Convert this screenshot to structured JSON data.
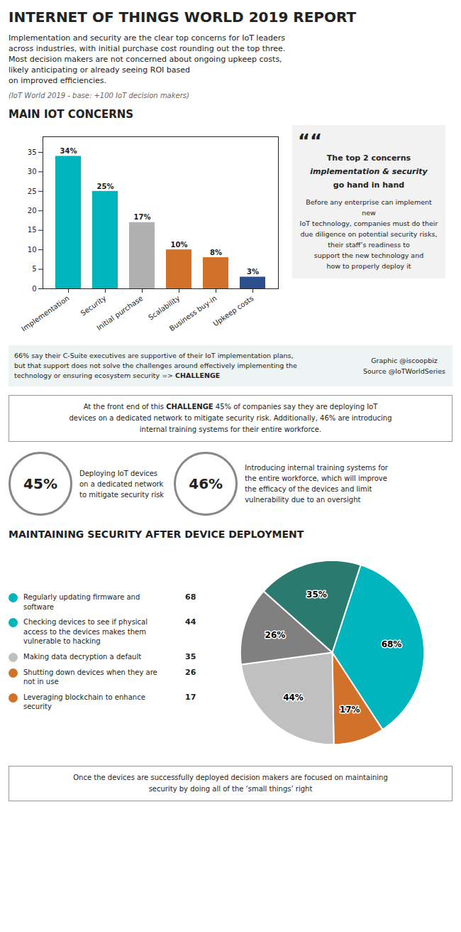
{
  "title": "INTERNET OF THINGS WORLD 2019 REPORT",
  "subtitle": [
    "Implementation and security are the clear top concerns for IoT leaders",
    "across industries, with initial purchase cost rounding out the top three.",
    "Most decision makers are not concerned about ongoing upkeep costs,",
    "likely anticipating or already seeing ROI based",
    "on improved efficiencies."
  ],
  "caption": "(IoT World 2019 - base: +100 IoT decision makers)",
  "annotations": [
    {
      "text": "66% say their C-Suite executives are supportive of their IoT implementation plans,\nbut that support does not solve the challenges around effectively implementing the\ntechnology or ensuring ecosystem security => "
    },
    {
      "text": "CHALLENGE"
    },
    {
      "text": "Graphic @iscoopbiz\nSource @IoTWorldSeries"
    },
    {
      "text": "At the front end of this "
    },
    {
      "text": "CHALLENGE"
    },
    {
      "text": " 45% of companies say they are deploying IoT"
    },
    {
      "text": "devices on a dedicated network to mitigate security risk. Additionally, 46% are introducing"
    },
    {
      "text": "internal training systems for their entire workforce."
    },
    {
      "text": "45%"
    },
    {
      "text": "Deploying IoT devices\non a dedicated network\nto mitigate security risk"
    },
    {
      "text": "46%"
    },
    {
      "text": "Introducing internal training systems for\nthe entire workforce, which will improve\nthe efficacy of the devices and limit\nvulnerability due to an oversight"
    },
    {
      "text": "Once the devices are successfully deployed decision makers are focused on maintaining\nsecurity by doing all of the ‘small things’ right"
    }
  ],
  "chart_data": [
    {
      "type": "bar",
      "title": "MAIN IOT CONCERNS",
      "categories": [
        "Implementation",
        "Security",
        "Initial purchase",
        "Scalability",
        "Business buy-in",
        "Upkeep costs"
      ],
      "values": [
        34,
        25,
        17,
        10,
        8,
        3
      ],
      "value_labels": [
        "34%",
        "25%",
        "17%",
        "10%",
        "8%",
        "3%"
      ],
      "colors": [
        "#00B5BE",
        "#00B5BE",
        "#B0B0B0",
        "#D2722A",
        "#D2722A",
        "#2B4F8C"
      ],
      "ylim": [
        0,
        39
      ],
      "yticks": [
        0,
        5,
        10,
        15,
        20,
        25,
        30,
        35
      ],
      "grid": false,
      "data_labels": true,
      "annotations": [
        {
          "text": "““"
        },
        {
          "text": "The top 2 concerns"
        },
        {
          "text": "implementation"
        },
        {
          "text": " & "
        },
        {
          "text": "security"
        },
        {
          "text": "go hand in hand"
        },
        {
          "text": "Before any enterprise can implement new\nIoT technology, companies must do their\ndue diligence on potential security risks,\ntheir staff’s readiness to\nsupport the new technology and\nhow to properly deploy it"
        }
      ]
    },
    {
      "type": "pie",
      "title": "MAINTAINING SECURITY AFTER DEVICE DEPLOYMENT",
      "values": [
        68,
        17,
        44,
        26,
        35
      ],
      "value_labels": [
        "68%",
        "17%",
        "44%",
        "26%",
        "35%"
      ],
      "colors": [
        "#00B5BE",
        "#D2722A",
        "#C0C0C0",
        "#808080",
        "#2B7A6F"
      ],
      "data_labels": true,
      "annotations": [
        {
          "text": "Regularly updating firmware and\nsoftware",
          "value": 68,
          "color": "#00B5BE"
        },
        {
          "text": "Checking devices to see if physical\naccess to the devices makes them\nvulnerable to hacking",
          "value": 44,
          "color": "#00B5BE"
        },
        {
          "text": "Making data decryption a default",
          "value": 35,
          "color": "#C0C0C0"
        },
        {
          "text": "Shutting down devices when they are\nnot in use",
          "value": 26,
          "color": "#D2722A"
        },
        {
          "text": "Leveraging blockchain to enhance\nsecurity",
          "value": 17,
          "color": "#D2722A"
        }
      ]
    }
  ]
}
